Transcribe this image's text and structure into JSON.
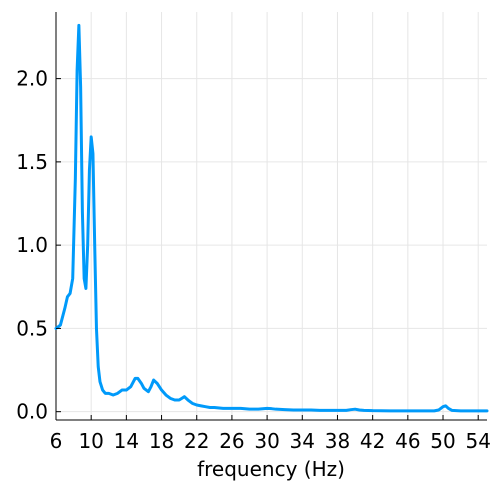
{
  "chart_data": {
    "type": "line",
    "title": "",
    "xlabel": "frequency (Hz)",
    "ylabel": "",
    "xlim": [
      6,
      55
    ],
    "ylim": [
      -0.05,
      2.4
    ],
    "grid": true,
    "legend": "none",
    "line_color": "#009AFA",
    "x_ticks": [
      6,
      10,
      14,
      18,
      22,
      26,
      30,
      34,
      38,
      42,
      46,
      50,
      54
    ],
    "x_tick_labels": [
      "6",
      "10",
      "14",
      "18",
      "22",
      "26",
      "30",
      "34",
      "38",
      "42",
      "46",
      "50",
      "54"
    ],
    "y_ticks": [
      0.0,
      0.5,
      1.0,
      1.5,
      2.0
    ],
    "y_tick_labels": [
      "0.0",
      "0.5",
      "1.0",
      "1.5",
      "2.0"
    ],
    "series": [
      {
        "x": [
          6.0,
          6.5,
          7.0,
          7.3,
          7.6,
          7.9,
          8.2,
          8.4,
          8.6,
          8.8,
          9.0,
          9.2,
          9.4,
          9.6,
          9.8,
          10.0,
          10.2,
          10.4,
          10.6,
          10.8,
          11.0,
          11.3,
          11.6,
          12.0,
          12.5,
          13.0,
          13.5,
          14.0,
          14.5,
          15.0,
          15.3,
          15.7,
          16.0,
          16.5,
          16.8,
          17.1,
          17.5,
          18.0,
          18.5,
          19.0,
          19.5,
          20.0,
          20.3,
          20.6,
          21.0,
          21.5,
          22.0,
          22.5,
          23.0,
          23.5,
          24.0,
          25.0,
          26.0,
          27.0,
          28.0,
          29.0,
          30.0,
          30.5,
          31.0,
          32.0,
          33.0,
          34.0,
          35.0,
          36.0,
          37.0,
          38.0,
          39.0,
          39.5,
          40.0,
          40.5,
          41.0,
          42.0,
          44.0,
          46.0,
          48.0,
          49.0,
          49.5,
          50.0,
          50.3,
          50.6,
          51.0,
          52.0,
          53.0,
          54.0,
          55.0
        ],
        "y": [
          0.5,
          0.52,
          0.62,
          0.69,
          0.71,
          0.8,
          1.4,
          2.05,
          2.32,
          1.95,
          1.2,
          0.8,
          0.74,
          1.0,
          1.45,
          1.65,
          1.55,
          1.0,
          0.5,
          0.27,
          0.18,
          0.13,
          0.11,
          0.11,
          0.1,
          0.11,
          0.13,
          0.13,
          0.15,
          0.2,
          0.2,
          0.17,
          0.14,
          0.12,
          0.15,
          0.19,
          0.17,
          0.13,
          0.1,
          0.08,
          0.07,
          0.07,
          0.08,
          0.09,
          0.07,
          0.05,
          0.04,
          0.035,
          0.03,
          0.025,
          0.025,
          0.02,
          0.02,
          0.02,
          0.015,
          0.015,
          0.02,
          0.018,
          0.015,
          0.012,
          0.01,
          0.01,
          0.01,
          0.008,
          0.008,
          0.008,
          0.008,
          0.012,
          0.015,
          0.01,
          0.008,
          0.006,
          0.005,
          0.005,
          0.005,
          0.005,
          0.01,
          0.03,
          0.035,
          0.02,
          0.008,
          0.005,
          0.005,
          0.005,
          0.005
        ]
      }
    ]
  }
}
